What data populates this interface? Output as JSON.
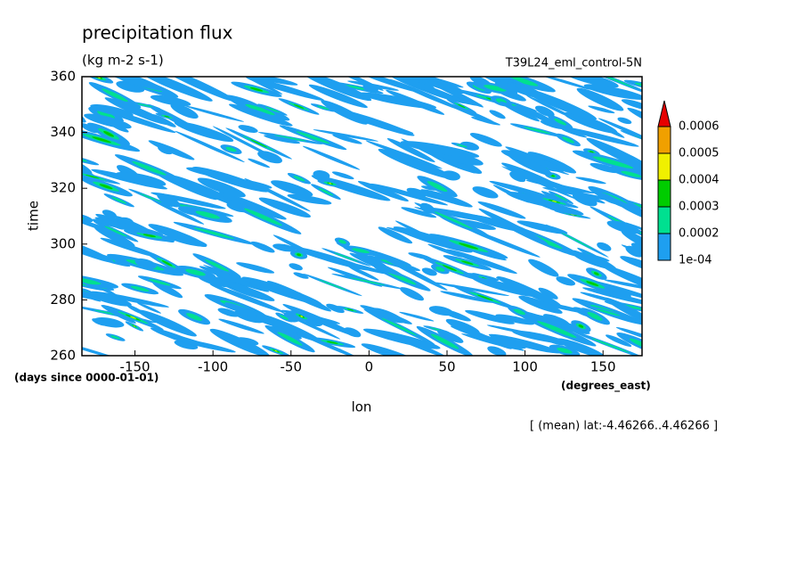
{
  "chart_data": {
    "type": "contour",
    "title": "precipitation flux",
    "subtitle": "(kg m-2 s-1)",
    "dataset": "T39L24_eml_control-5N",
    "xlabel": "lon",
    "xunits": "(degrees_east)",
    "yunits": "(days since 0000-01-01)",
    "ylabel": "time",
    "note": "[ (mean) lat:-4.46266..4.46266 ]",
    "xlim": [
      -184,
      175
    ],
    "xticks": [
      -150,
      -100,
      -50,
      0,
      50,
      100,
      150
    ],
    "ylim": [
      260,
      360
    ],
    "yticks": [
      260,
      280,
      300,
      320,
      340,
      360
    ],
    "levels": [
      {
        "value": 0.0001,
        "label": "1e-04"
      },
      0.0002,
      0.0003,
      0.0004,
      0.0005,
      0.0006
    ],
    "colors": [
      "#1e9ff0",
      "#00e090",
      "#00cc00",
      "#f0f000",
      "#f0a000",
      "#e60000"
    ]
  }
}
